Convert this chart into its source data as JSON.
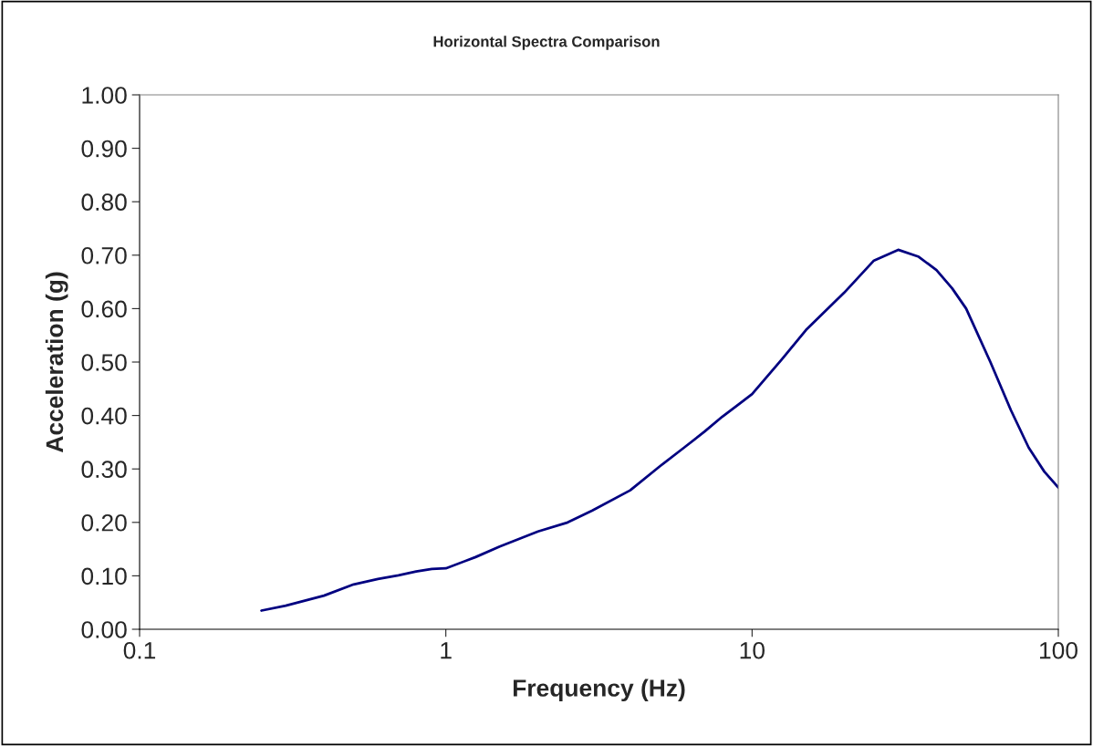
{
  "chart_data": {
    "type": "line",
    "title": "Horizontal Spectra Comparison",
    "xlabel": "Frequency (Hz)",
    "ylabel": "Acceleration (g)",
    "series": [
      {
        "color": "#000080",
        "x": [
          0.25,
          0.3,
          0.4,
          0.5,
          0.6,
          0.7,
          0.8,
          0.9,
          1,
          1.25,
          1.5,
          2,
          2.5,
          3,
          4,
          5,
          6,
          7,
          8,
          9,
          10,
          12.5,
          15,
          20,
          25,
          30,
          35,
          40,
          45,
          50,
          60,
          70,
          80,
          90,
          100
        ],
        "values": [
          0.035,
          0.044,
          0.063,
          0.084,
          0.094,
          0.101,
          0.108,
          0.113,
          0.114,
          0.135,
          0.155,
          0.183,
          0.2,
          0.222,
          0.26,
          0.305,
          0.34,
          0.37,
          0.398,
          0.42,
          0.44,
          0.505,
          0.56,
          0.63,
          0.69,
          0.71,
          0.697,
          0.672,
          0.638,
          0.6,
          0.5,
          0.41,
          0.34,
          0.295,
          0.265
        ]
      }
    ],
    "log": "x",
    "xlim": [
      0.1,
      100
    ],
    "xticks": [
      0.1,
      1,
      10,
      100
    ],
    "ylim": [
      0,
      1
    ],
    "yticks": [
      {
        "value": 0,
        "label": "0.00"
      },
      {
        "value": 0.1,
        "label": "0.10"
      },
      {
        "value": 0.2,
        "label": "0.20"
      },
      {
        "value": 0.3,
        "label": "0.30"
      },
      {
        "value": 0.4,
        "label": "0.40"
      },
      {
        "value": 0.5,
        "label": "0.50"
      },
      {
        "value": 0.6,
        "label": "0.60"
      },
      {
        "value": 0.7,
        "label": "0.70"
      },
      {
        "value": 0.8,
        "label": "0.80"
      },
      {
        "value": 0.9,
        "label": "0.90"
      },
      {
        "value": 1,
        "label": "1.00"
      }
    ],
    "grid": false,
    "legend": false,
    "marker": "none",
    "line_style": "solid"
  }
}
